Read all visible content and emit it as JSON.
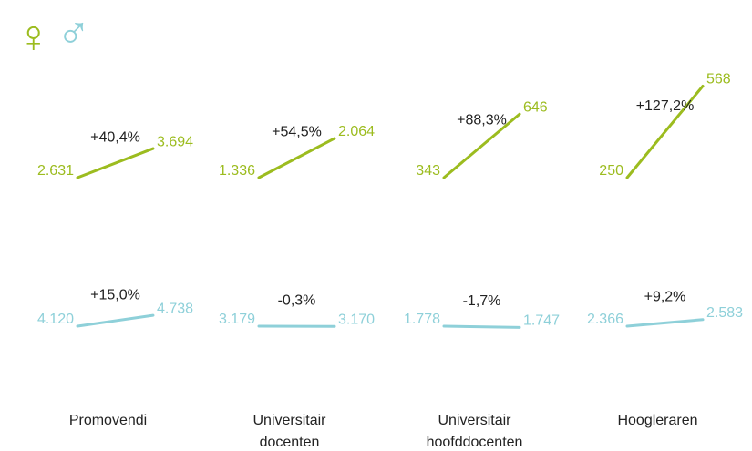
{
  "chart_data": {
    "type": "slope",
    "categories": [
      [
        "Promovendi"
      ],
      [
        "Universitair",
        "docenten"
      ],
      [
        "Universitair",
        "hoofddocenten"
      ],
      [
        "Hoogleraren"
      ]
    ],
    "series": [
      {
        "name": "♀",
        "color": "#9cbc1f",
        "start": [
          2631,
          1336,
          343,
          250
        ],
        "end": [
          3694,
          2064,
          646,
          568
        ],
        "start_labels": [
          "2.631",
          "1.336",
          "343",
          "250"
        ],
        "end_labels": [
          "3.694",
          "2.064",
          "646",
          "568"
        ],
        "change_labels": [
          "+40,4%",
          "+54,5%",
          "+88,3%",
          "+127,2%"
        ]
      },
      {
        "name": "♂",
        "color": "#8ed0d9",
        "start": [
          4120,
          3179,
          1778,
          2366
        ],
        "end": [
          4738,
          3170,
          1747,
          2583
        ],
        "start_labels": [
          "4.120",
          "3.179",
          "1.778",
          "2.366"
        ],
        "end_labels": [
          "4.738",
          "3.170",
          "1.747",
          "2.583"
        ],
        "change_labels": [
          "+15,0%",
          "-0,3%",
          "-1,7%",
          "+9,2%"
        ]
      }
    ]
  }
}
